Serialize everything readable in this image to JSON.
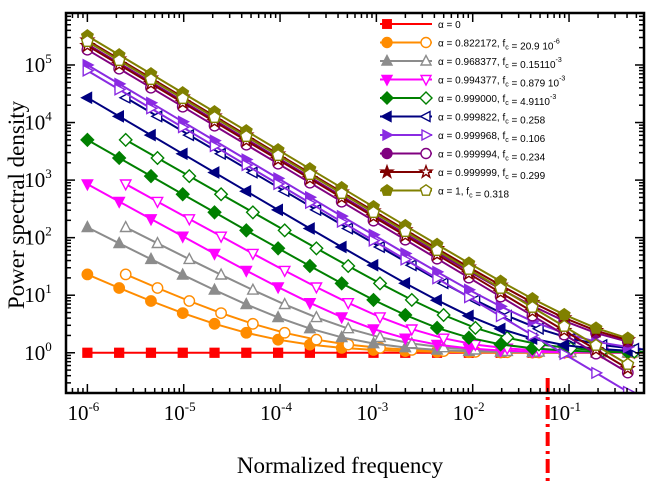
{
  "chart_data": {
    "type": "line",
    "xlabel": "Normalized frequency",
    "ylabel": "Power spectral density",
    "xscale": "log",
    "yscale": "log",
    "xlim": [
      6e-07,
      0.6
    ],
    "ylim": [
      0.2,
      800000
    ],
    "x_ticks": [
      {
        "base": "10",
        "exp": "-6",
        "value": 1e-06
      },
      {
        "base": "10",
        "exp": "-5",
        "value": 1e-05
      },
      {
        "base": "10",
        "exp": "-4",
        "value": 0.0001
      },
      {
        "base": "10",
        "exp": "-3",
        "value": 0.001
      },
      {
        "base": "10",
        "exp": "-2",
        "value": 0.01
      },
      {
        "base": "10",
        "exp": "-1",
        "value": 0.1
      }
    ],
    "y_ticks": [
      {
        "base": "10",
        "exp": "0",
        "value": 1
      },
      {
        "base": "10",
        "exp": "1",
        "value": 10
      },
      {
        "base": "10",
        "exp": "2",
        "value": 100
      },
      {
        "base": "10",
        "exp": "3",
        "value": 1000
      },
      {
        "base": "10",
        "exp": "4",
        "value": 10000
      },
      {
        "base": "10",
        "exp": "5",
        "value": 100000
      }
    ],
    "legend_position": "top-right",
    "grid": false,
    "vline": {
      "x": 0.06,
      "color": "#ff0000",
      "style": "dash-dot"
    },
    "series": [
      {
        "name": "α = 0",
        "legend": [
          {
            "t": "α = 0"
          }
        ],
        "color": "#ff0000",
        "marker": "square",
        "A": 1,
        "g": 0,
        "lag": null
      },
      {
        "name": "α = 0.822172, fc = 20.9 10-6",
        "legend": [
          {
            "t": "α = 0.822172, f"
          },
          {
            "t": "c",
            "sub": true
          },
          {
            "t": " = 20.9 10"
          },
          {
            "t": "-6",
            "sup": true
          }
        ],
        "color": "#ff8c00",
        "marker": "circle",
        "A": 22,
        "g": 0.76,
        "lag": "xk"
      },
      {
        "name": "α = 0.968377, fc = 0.15110-3",
        "legend": [
          {
            "t": "α = 0.968377, f"
          },
          {
            "t": "c",
            "sub": true
          },
          {
            "t": " = 0.15110"
          },
          {
            "t": "-3",
            "sup": true
          }
        ],
        "color": "#8c8c8c",
        "marker": "triangle-up",
        "A": 150,
        "g": 0.85,
        "lag": "xk"
      },
      {
        "name": "α = 0.994377, fc = 0.879 10-3",
        "legend": [
          {
            "t": "α = 0.994377, f"
          },
          {
            "t": "c",
            "sub": true
          },
          {
            "t": " = 0.879 10"
          },
          {
            "t": "-3",
            "sup": true
          }
        ],
        "color": "#ff00ff",
        "marker": "triangle-down",
        "A": 850,
        "g": 0.92,
        "lag": "xk"
      },
      {
        "name": "α = 0.999000, fc = 4.9110-3",
        "legend": [
          {
            "t": "α = 0.999000, f"
          },
          {
            "t": "c",
            "sub": true
          },
          {
            "t": " = 4.9110"
          },
          {
            "t": "-3",
            "sup": true
          }
        ],
        "color": "#008000",
        "marker": "diamond",
        "A": 5000,
        "g": 0.955,
        "lag": "xk"
      },
      {
        "name": "α = 0.999822, fc = 0.258",
        "legend": [
          {
            "t": "α = 0.999822, f"
          },
          {
            "t": "c",
            "sub": true
          },
          {
            "t": " = 0.258"
          }
        ],
        "color": "#000080",
        "marker": "triangle-left",
        "A": 27000,
        "g": 0.985,
        "lag": "xk"
      },
      {
        "name": "α = 0.999968, fc = 0.106",
        "legend": [
          {
            "t": "α = 0.999968, f"
          },
          {
            "t": "c",
            "sub": true
          },
          {
            "t": " = 0.106"
          }
        ],
        "color": "#8a2be2",
        "marker": "triangle-right",
        "A": 100000,
        "g": 0.995,
        "lag": "yk"
      },
      {
        "name": "α = 0.999994, fc = 0.234",
        "legend": [
          {
            "t": "α = 0.999994, f"
          },
          {
            "t": "c",
            "sub": true
          },
          {
            "t": " = 0.234"
          }
        ],
        "color": "#800080",
        "marker": "circle",
        "A": 230000,
        "g": 1.0,
        "lag": "yk"
      },
      {
        "name": "α = 0.999999, fc = 0.299",
        "legend": [
          {
            "t": "α = 0.999999, f"
          },
          {
            "t": "c",
            "sub": true
          },
          {
            "t": " = 0.299"
          }
        ],
        "color": "#800000",
        "marker": "star",
        "A": 270000,
        "g": 1.0,
        "lag": "yk"
      },
      {
        "name": "α = 1, fc = 0.318",
        "legend": [
          {
            "t": "α = 1, f"
          },
          {
            "t": "c",
            "sub": true
          },
          {
            "t": " = 0.318"
          }
        ],
        "color": "#808000",
        "marker": "pentagon",
        "A": 320000,
        "g": 1.0,
        "lag": "yk"
      }
    ]
  }
}
